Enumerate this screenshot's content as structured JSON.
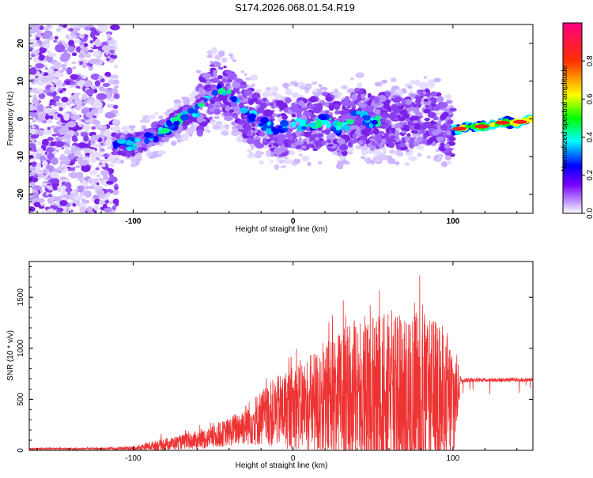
{
  "title": "S174.2026.068.01.54.R19",
  "chart_data": [
    {
      "type": "heatmap",
      "name": "spectrogram",
      "xlabel": "Height of straight line (km)",
      "ylabel": "Frequency (Hz)",
      "xlim": [
        -165,
        150
      ],
      "ylim": [
        -25,
        25
      ],
      "xticks": [
        -100,
        0,
        100
      ],
      "xtick_labels": [
        "-100",
        "0",
        "100"
      ],
      "yticks": [
        -20,
        -10,
        0,
        10,
        20
      ],
      "ytick_labels": [
        "-20",
        "-10",
        "0",
        "10",
        "20"
      ],
      "colorbar": {
        "label": "Normalized spectral amplitude",
        "range": [
          0,
          1
        ],
        "ticks": [
          0.0,
          0.2,
          0.4,
          0.6,
          0.8
        ],
        "tick_labels": [
          "0.0",
          "0.2",
          "0.4",
          "0.6",
          "0.8"
        ],
        "colors": [
          "#ffffff",
          "#e0d0ff",
          "#8a2be2",
          "#0000ff",
          "#00ffff",
          "#00ff00",
          "#ffff00",
          "#ff0000",
          "#ff1493"
        ]
      },
      "ridge": {
        "x": [
          -110,
          -100,
          -90,
          -80,
          -70,
          -60,
          -50,
          -40,
          -30,
          -20,
          -10,
          0,
          10,
          20,
          30,
          40,
          50,
          60,
          70,
          80,
          90,
          100,
          110,
          120,
          130,
          140,
          150
        ],
        "freq": [
          -7,
          -7,
          -5,
          -3,
          0,
          2,
          8,
          7,
          2,
          -1,
          -3,
          -1,
          -2,
          0,
          -3,
          1,
          -1,
          0,
          -2,
          1,
          0,
          -3,
          -2,
          -2,
          -1,
          -1,
          0
        ]
      }
    },
    {
      "type": "line",
      "name": "snr",
      "xlabel": "Height of straight line (km)",
      "ylabel": "SNR (10 * v/v)",
      "xlim": [
        -165,
        150
      ],
      "ylim": [
        0,
        1850
      ],
      "xticks": [
        -100,
        0,
        100
      ],
      "xtick_labels": [
        "-100",
        "0",
        "100"
      ],
      "yticks": [
        0,
        500,
        1000,
        1500
      ],
      "ytick_labels": [
        "0",
        "500",
        "1000",
        "1500"
      ],
      "color": "#ee3333",
      "envelope": {
        "x": [
          -165,
          -120,
          -100,
          -90,
          -80,
          -70,
          -60,
          -50,
          -40,
          -30,
          -20,
          -10,
          0,
          10,
          20,
          30,
          40,
          50,
          60,
          70,
          80,
          90,
          100,
          105,
          110,
          120,
          130,
          140,
          150
        ],
        "base": [
          15,
          15,
          20,
          40,
          60,
          80,
          100,
          130,
          180,
          250,
          320,
          380,
          420,
          450,
          470,
          480,
          500,
          500,
          500,
          480,
          480,
          470,
          450,
          690,
          690,
          690,
          690,
          690,
          690
        ],
        "spread": [
          10,
          10,
          20,
          40,
          60,
          70,
          90,
          110,
          140,
          200,
          280,
          350,
          420,
          500,
          600,
          700,
          800,
          850,
          850,
          850,
          900,
          800,
          700,
          20,
          20,
          20,
          20,
          20,
          20
        ],
        "peak": [
          30,
          40,
          40,
          120,
          180,
          200,
          250,
          320,
          420,
          640,
          820,
          960,
          1000,
          1180,
          1310,
          1520,
          1500,
          1700,
          1700,
          1560,
          1850,
          1600,
          1580,
          730,
          730,
          730,
          730,
          730,
          730
        ]
      }
    }
  ]
}
